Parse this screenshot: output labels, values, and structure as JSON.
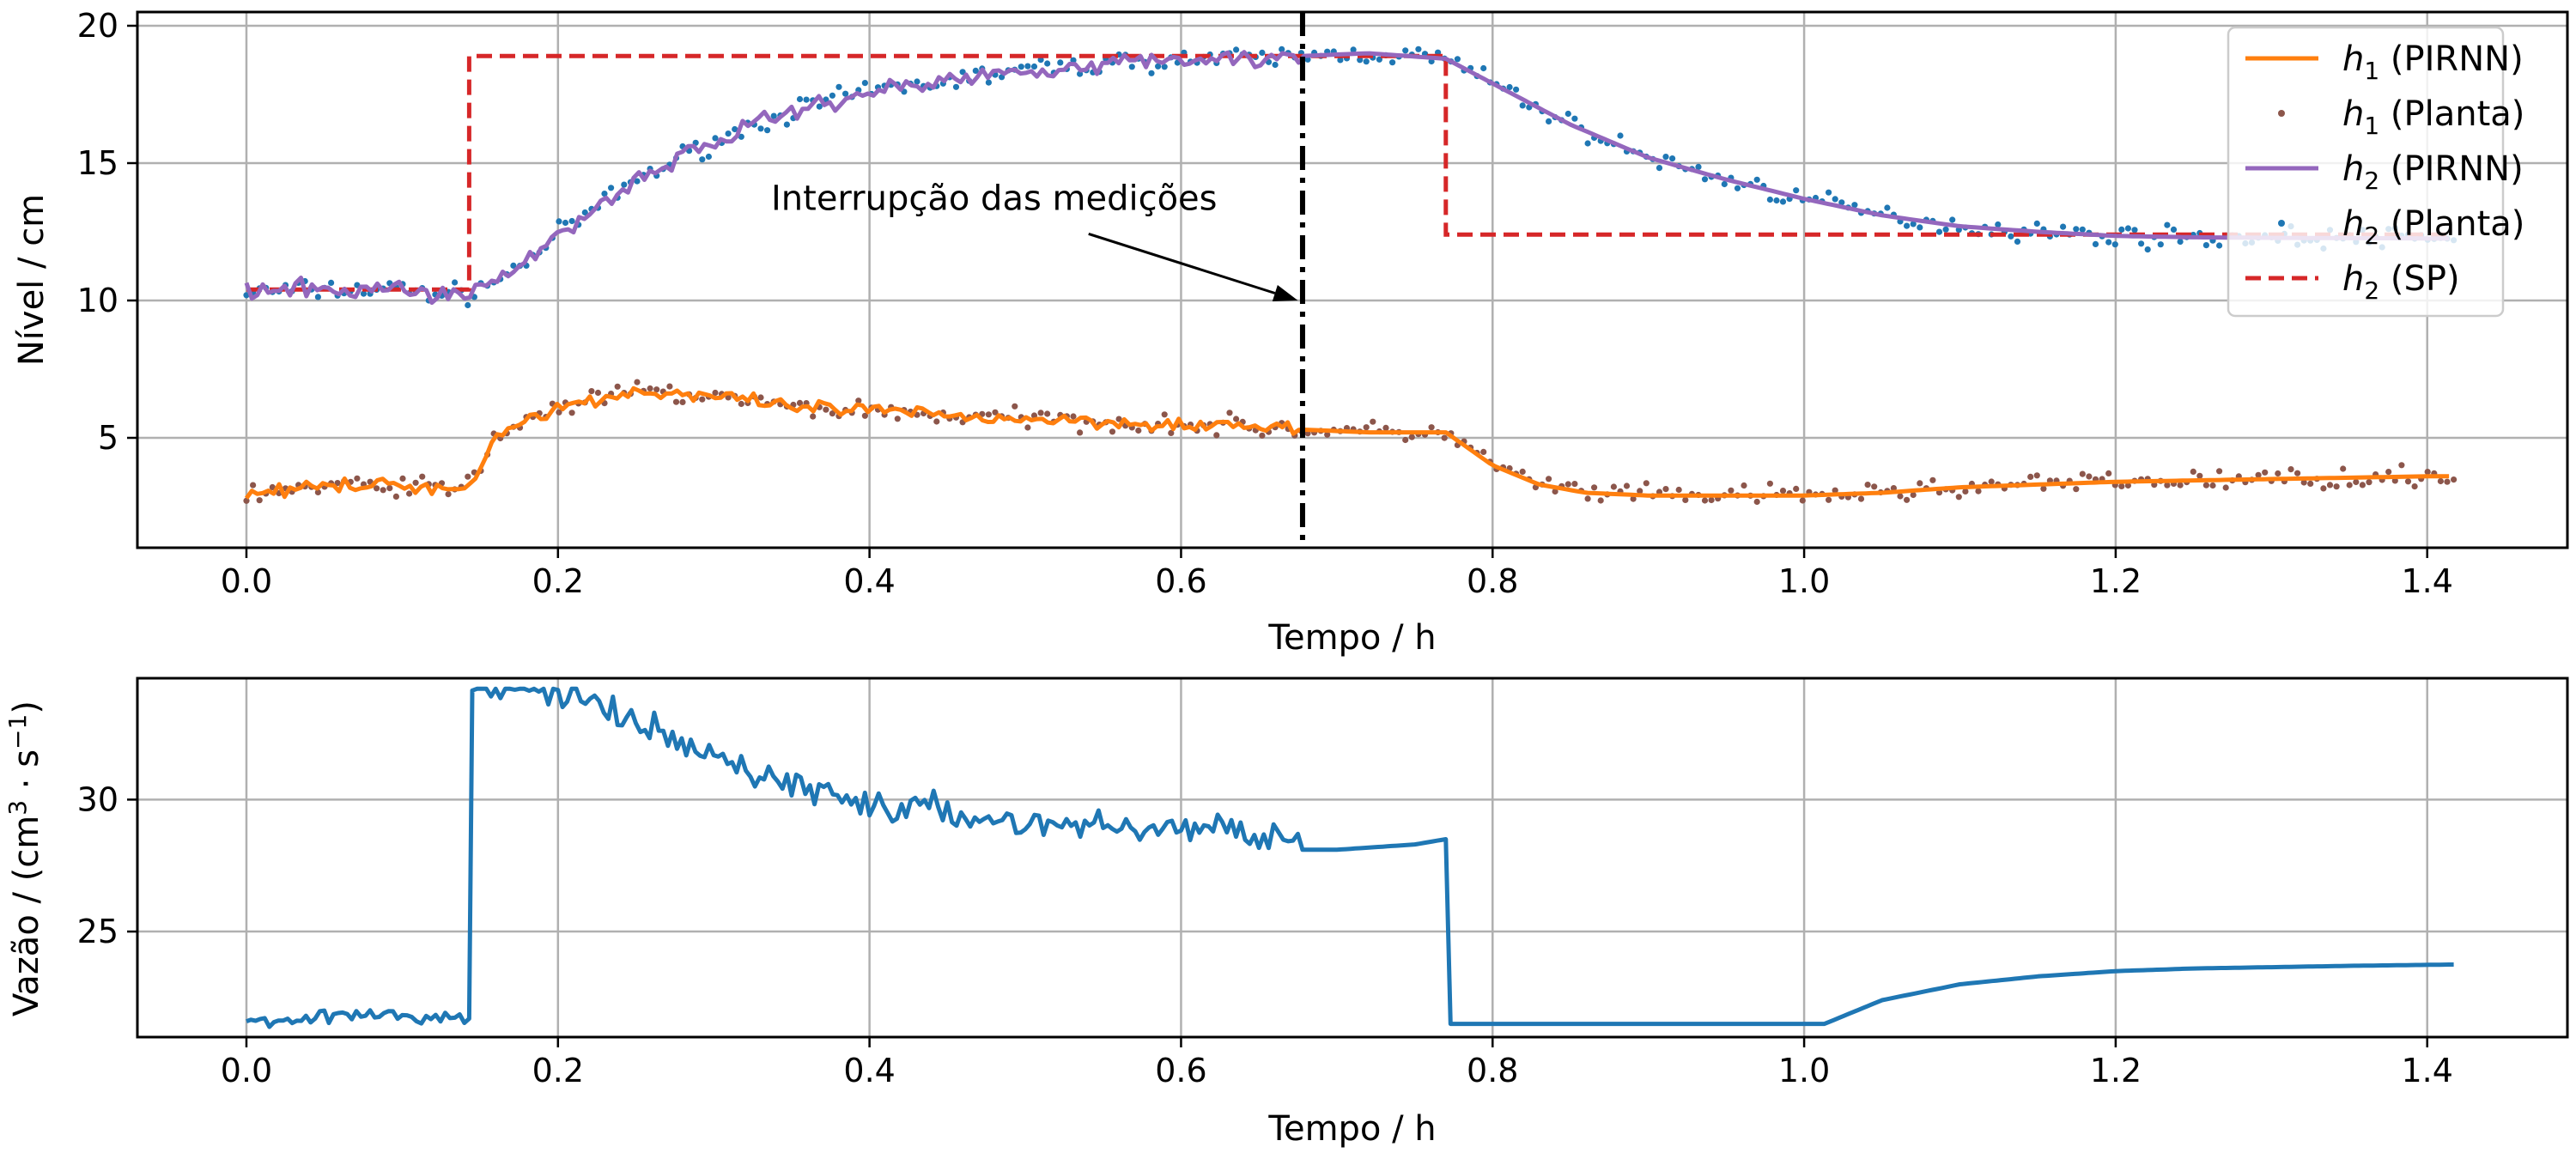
{
  "chart_data": [
    {
      "type": "line",
      "xlabel": "Tempo / h",
      "ylabel": "Nível / cm",
      "xlim": [
        -0.07,
        1.49
      ],
      "ylim": [
        1.0,
        20.5
      ],
      "xticks": [
        0.0,
        0.2,
        0.4,
        0.6,
        0.8,
        1.0,
        1.2,
        1.4
      ],
      "xtick_labels": [
        "0.0",
        "0.2",
        "0.4",
        "0.6",
        "0.8",
        "1.0",
        "1.2",
        "1.4"
      ],
      "yticks": [
        5,
        10,
        15,
        20
      ],
      "ytick_labels": [
        "5",
        "10",
        "15",
        "20"
      ],
      "grid": true,
      "legend_position": "top-right",
      "legend": [
        {
          "sym": "h",
          "sub": "1",
          "rest": " (PIRNN)",
          "kind": "line",
          "color": "#ff7f0e"
        },
        {
          "sym": "h",
          "sub": "1",
          "rest": " (Planta)",
          "kind": "dot",
          "color": "#8c564b"
        },
        {
          "sym": "h",
          "sub": "2",
          "rest": " (PIRNN)",
          "kind": "line",
          "color": "#9467bd"
        },
        {
          "sym": "h",
          "sub": "2",
          "rest": " (Planta)",
          "kind": "dot",
          "color": "#1f77b4"
        },
        {
          "sym": "h",
          "sub": "2",
          "rest": " (SP)",
          "kind": "dash",
          "color": "#d62728"
        }
      ],
      "annotation": {
        "text": "Interrupção das medições",
        "text_at": [
          0.48,
          13.3
        ],
        "arrow_to": [
          0.675,
          10.0
        ]
      },
      "vline": {
        "x": 0.678,
        "style": "dashdot",
        "color": "#000000"
      },
      "series": [
        {
          "id": "h2_sp",
          "style": "dashed",
          "color": "#d62728",
          "x": [
            0.0,
            0.143,
            0.143,
            0.77,
            0.77,
            1.417
          ],
          "y": [
            10.4,
            10.4,
            18.9,
            18.9,
            12.4,
            12.4
          ]
        },
        {
          "id": "h2_pirnn",
          "style": "line",
          "color": "#9467bd",
          "x": [
            0.0,
            0.05,
            0.1,
            0.14,
            0.17,
            0.2,
            0.25,
            0.3,
            0.35,
            0.4,
            0.45,
            0.5,
            0.55,
            0.6,
            0.65,
            0.678,
            0.72,
            0.77,
            0.8,
            0.85,
            0.9,
            0.95,
            1.0,
            1.05,
            1.1,
            1.15,
            1.2,
            1.25,
            1.3,
            1.35,
            1.4,
            1.417
          ],
          "y": [
            10.3,
            10.4,
            10.4,
            10.2,
            11.0,
            12.4,
            14.4,
            15.8,
            16.9,
            17.6,
            18.0,
            18.4,
            18.6,
            18.8,
            18.8,
            18.9,
            19.0,
            18.8,
            17.9,
            16.4,
            15.2,
            14.4,
            13.7,
            13.1,
            12.7,
            12.5,
            12.35,
            12.3,
            12.28,
            12.27,
            12.26,
            12.26
          ],
          "noise_amp": 0.5,
          "noise_until": 0.678
        },
        {
          "id": "h1_pirnn",
          "style": "line",
          "color": "#ff7f0e",
          "x": [
            0.0,
            0.05,
            0.1,
            0.14,
            0.16,
            0.18,
            0.2,
            0.25,
            0.3,
            0.35,
            0.4,
            0.45,
            0.5,
            0.55,
            0.6,
            0.65,
            0.678,
            0.72,
            0.77,
            0.8,
            0.83,
            0.86,
            0.9,
            0.95,
            1.0,
            1.05,
            1.1,
            1.15,
            1.2,
            1.25,
            1.3,
            1.35,
            1.4,
            1.417
          ],
          "y": [
            3.0,
            3.2,
            3.3,
            3.1,
            5.0,
            5.7,
            6.1,
            6.7,
            6.5,
            6.1,
            6.0,
            5.8,
            5.7,
            5.6,
            5.5,
            5.4,
            5.3,
            5.2,
            5.2,
            4.0,
            3.3,
            3.0,
            2.9,
            2.9,
            2.9,
            3.0,
            3.2,
            3.3,
            3.4,
            3.45,
            3.5,
            3.55,
            3.6,
            3.6
          ],
          "noise_amp": 0.38,
          "noise_until": 0.678
        },
        {
          "id": "h2_planta",
          "style": "scatter",
          "color": "#1f77b4",
          "x_start": 0.0,
          "x_end": 1.417,
          "n_points": 340,
          "trend_series": "h2_pirnn",
          "noise_amp": 0.55
        },
        {
          "id": "h1_planta",
          "style": "scatter",
          "color": "#8c564b",
          "x_start": 0.0,
          "x_end": 1.417,
          "n_points": 340,
          "trend_series": "h1_pirnn",
          "noise_amp": 0.55
        }
      ]
    },
    {
      "type": "line",
      "xlabel": "Tempo / h",
      "ylabel": "Vazão / (cm³ · s⁻¹)",
      "ylabel_parts": {
        "base": "Vazão / (cm",
        "sup1": "3",
        "mid": " · s",
        "sup2": "−1",
        "end": ")"
      },
      "xlim": [
        -0.07,
        1.49
      ],
      "ylim": [
        21.0,
        34.6
      ],
      "xticks": [
        0.0,
        0.2,
        0.4,
        0.6,
        0.8,
        1.0,
        1.2,
        1.4
      ],
      "xtick_labels": [
        "0.0",
        "0.2",
        "0.4",
        "0.6",
        "0.8",
        "1.0",
        "1.2",
        "1.4"
      ],
      "yticks": [
        25,
        30
      ],
      "ytick_labels": [
        "25",
        "30"
      ],
      "grid": true,
      "series": [
        {
          "id": "flow",
          "style": "line",
          "color": "#1f77b4",
          "x": [
            0.0,
            0.05,
            0.1,
            0.143,
            0.145,
            0.16,
            0.2,
            0.25,
            0.3,
            0.35,
            0.4,
            0.45,
            0.5,
            0.55,
            0.6,
            0.65,
            0.675,
            0.678,
            0.7,
            0.75,
            0.77,
            0.773,
            0.8,
            0.9,
            1.0,
            1.013,
            1.05,
            1.1,
            1.15,
            1.2,
            1.25,
            1.3,
            1.35,
            1.417
          ],
          "y": [
            21.6,
            21.8,
            21.8,
            21.7,
            34.0,
            34.3,
            34.2,
            32.8,
            31.6,
            30.6,
            29.8,
            29.5,
            29.1,
            29.0,
            28.9,
            28.8,
            28.7,
            28.1,
            28.1,
            28.3,
            28.5,
            21.5,
            21.5,
            21.5,
            21.5,
            21.5,
            22.4,
            23.0,
            23.3,
            23.5,
            23.6,
            23.65,
            23.7,
            23.75
          ],
          "noise_from": 0.0,
          "noise_until": 0.678,
          "noise_amp": 0.9
        }
      ]
    }
  ]
}
